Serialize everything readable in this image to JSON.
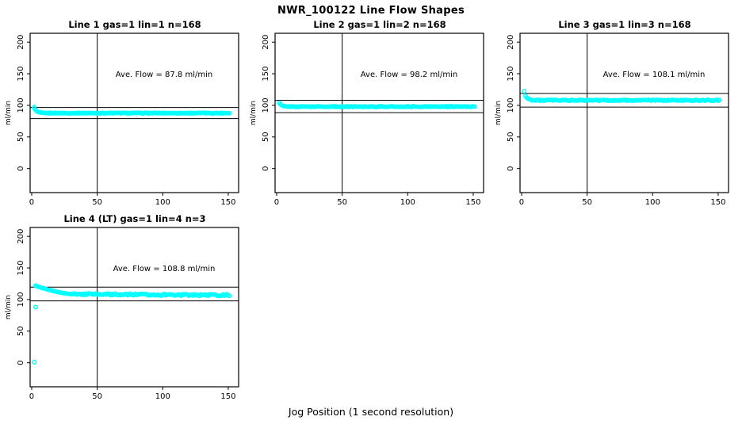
{
  "page_title": "NWR_100122  Line Flow Shapes",
  "xlabel": "Jog Position (1 second resolution)",
  "point_color": "#00ffff",
  "axis_color": "#000000",
  "chart_data": [
    {
      "type": "scatter",
      "title": "Line 1 gas=1 lin=1 n=168",
      "ylabel": "ml/min",
      "ave_flow": 87.8,
      "annotation": "Ave. Flow =  87.8  ml/min",
      "x_ticks": [
        0,
        50,
        100,
        150
      ],
      "y_ticks": [
        0,
        50,
        100,
        150,
        200
      ],
      "xlim": [
        -1.2,
        157.9
      ],
      "ylim": [
        -38,
        214
      ],
      "ref_vline_x": 50,
      "ref_hlines": [
        96.6,
        79.0
      ],
      "points_head": [
        [
          2,
          97.5
        ],
        [
          2,
          95
        ],
        [
          3,
          92.5
        ],
        [
          4,
          90.5
        ],
        [
          5,
          89.5
        ],
        [
          6,
          89
        ],
        [
          7,
          88.6
        ],
        [
          8,
          88.3
        ]
      ],
      "points_tail": {
        "x_from": 9,
        "x_to": 151,
        "x_step": 1,
        "value": 87.8,
        "slope": 0,
        "noise": 0.6,
        "seed": 1
      }
    },
    {
      "type": "scatter",
      "title": "Line 2 gas=1 lin=2 n=168",
      "ylabel": "ml/min",
      "ave_flow": 98.2,
      "annotation": "Ave. Flow =  98.2  ml/min",
      "x_ticks": [
        0,
        50,
        100,
        150
      ],
      "y_ticks": [
        0,
        50,
        100,
        150,
        200
      ],
      "xlim": [
        -1.2,
        157.9
      ],
      "ylim": [
        -38,
        214
      ],
      "ref_vline_x": 50,
      "ref_hlines": [
        108.0,
        88.4
      ],
      "points_head": [
        [
          2,
          104
        ],
        [
          3,
          101.5
        ],
        [
          4,
          100
        ],
        [
          5,
          99.2
        ],
        [
          6,
          98.7
        ]
      ],
      "points_tail": {
        "x_from": 7,
        "x_to": 151,
        "x_step": 1,
        "value": 98.0,
        "slope": 0,
        "noise": 0.6,
        "seed": 2
      }
    },
    {
      "type": "scatter",
      "title": "Line 3 gas=1 lin=3 n=168",
      "ylabel": "ml/min",
      "ave_flow": 108.1,
      "annotation": "Ave. Flow =  108.1  ml/min",
      "x_ticks": [
        0,
        50,
        100,
        150
      ],
      "y_ticks": [
        0,
        50,
        100,
        150,
        200
      ],
      "xlim": [
        -1.2,
        157.9
      ],
      "ylim": [
        -38,
        214
      ],
      "ref_vline_x": 50,
      "ref_hlines": [
        118.9,
        97.3
      ],
      "points_head": [
        [
          2,
          122.5
        ],
        [
          3,
          115
        ],
        [
          4,
          112
        ],
        [
          5,
          110.5
        ],
        [
          6,
          109.6
        ],
        [
          7,
          109.1
        ]
      ],
      "points_tail": {
        "x_from": 8,
        "x_to": 151,
        "x_step": 1,
        "value": 108.0,
        "slope": 0,
        "noise": 0.8,
        "seed": 3
      }
    },
    {
      "type": "scatter",
      "title": "Line 4 (LT) gas=1 lin=4 n=3",
      "ylabel": "ml/min",
      "ave_flow": 108.8,
      "annotation": "Ave. Flow =  108.8  ml/min",
      "x_ticks": [
        0,
        50,
        100,
        150
      ],
      "y_ticks": [
        0,
        50,
        100,
        150,
        200
      ],
      "xlim": [
        -1.2,
        157.9
      ],
      "ylim": [
        -38,
        214
      ],
      "ref_vline_x": 50,
      "ref_hlines": [
        119.7,
        97.9
      ],
      "points_head": [
        [
          2,
          1
        ],
        [
          3,
          88
        ],
        [
          3,
          122
        ],
        [
          4,
          121
        ],
        [
          5,
          120.3
        ],
        [
          6,
          119.6
        ],
        [
          7,
          119
        ],
        [
          8,
          118.4
        ],
        [
          9,
          117.9
        ],
        [
          10,
          117.4
        ],
        [
          11,
          116.6
        ],
        [
          12,
          116
        ],
        [
          13,
          115.4
        ],
        [
          14,
          114.9
        ],
        [
          15,
          114.4
        ],
        [
          16,
          113.9
        ],
        [
          17,
          113.4
        ],
        [
          18,
          112.9
        ],
        [
          19,
          112.4
        ],
        [
          20,
          112
        ],
        [
          21,
          111.5
        ],
        [
          22,
          111.1
        ],
        [
          23,
          110.7
        ],
        [
          24,
          110.3
        ],
        [
          25,
          110
        ],
        [
          26,
          109.7
        ],
        [
          27,
          109.4
        ],
        [
          28,
          109.1
        ],
        [
          29,
          108.9
        ],
        [
          30,
          108.7
        ]
      ],
      "points_tail": {
        "x_from": 31,
        "x_to": 151,
        "x_step": 1,
        "value": 108.6,
        "slope": -0.014,
        "noise": 1.3,
        "seed": 4
      }
    }
  ]
}
